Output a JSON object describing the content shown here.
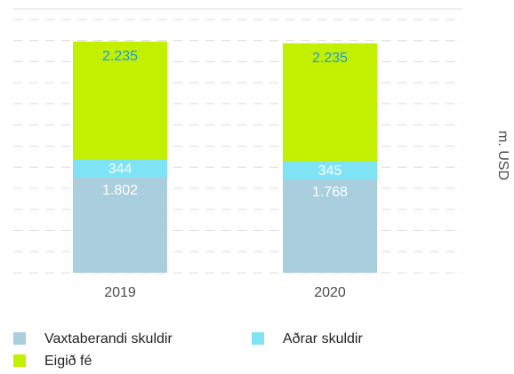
{
  "chart_data": {
    "type": "stacked_bar",
    "ylabel": "m. USD",
    "categories": [
      "2019",
      "2020"
    ],
    "series": [
      {
        "name": "Vaxtaberandi skuldir",
        "color": "#a9cfdf",
        "label_color": "#ffffff",
        "values": [
          1802,
          1768
        ],
        "value_labels": [
          "1.802",
          "1.768"
        ]
      },
      {
        "name": "Aðrar skuldir",
        "color": "#7fe3f6",
        "label_color": "#ffffff",
        "values": [
          344,
          345
        ],
        "value_labels": [
          "344",
          "345"
        ]
      },
      {
        "name": "Eigið fé",
        "color": "#c3f000",
        "label_color": "#1c9bd8",
        "values": [
          2235,
          2235
        ],
        "value_labels": [
          "2.235",
          "2.235"
        ]
      }
    ],
    "ylim": [
      0,
      5000
    ],
    "yticks": [
      0,
      400,
      800,
      1200,
      1600,
      2000,
      2400,
      2800,
      3200,
      3600,
      4000,
      4400,
      4800
    ],
    "grid": true
  }
}
